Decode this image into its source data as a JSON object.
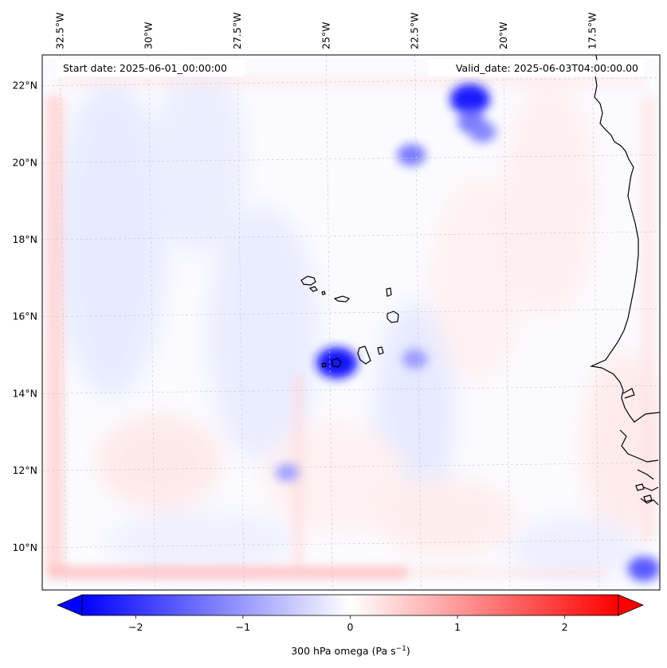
{
  "map": {
    "start_date": "Start date: 2025-06-01_00:00:00",
    "valid_date": "Valid_date: 2025-06-03T04:00:00.00",
    "lon_labels": [
      "32.5°W",
      "30°W",
      "27.5°W",
      "25°W",
      "22.5°W",
      "20°W",
      "17.5°W"
    ],
    "lat_labels": [
      "22°N",
      "20°N",
      "18°N",
      "16°N",
      "14°N",
      "12°N",
      "10°N"
    ],
    "extent": {
      "lon_min": -33.0,
      "lon_max": -15.6,
      "lat_min": 8.9,
      "lat_max": 22.8
    },
    "gridlines": true,
    "coastline_color": "#000000"
  },
  "colorbar": {
    "ticks": [
      "−2",
      "−1",
      "0",
      "1",
      "2"
    ],
    "tick_values": [
      -2,
      -1,
      0,
      1,
      2
    ],
    "range": [
      -2.5,
      2.5
    ],
    "label_main": "300 hPa omega (Pa s",
    "label_sup": "−1",
    "label_end": ")",
    "colormap": "bwr",
    "extend": "both",
    "color_low": "#0000ff",
    "color_mid": "#ffffff",
    "color_high": "#ff0000"
  },
  "field_features": [
    {
      "lon": -20.95,
      "lat": 21.65,
      "value": -2.2
    },
    {
      "lon": -20.9,
      "lat": 21.05,
      "value": -1.3
    },
    {
      "lon": -20.6,
      "lat": 20.8,
      "value": -1.2
    },
    {
      "lon": -22.6,
      "lat": 20.2,
      "value": -1.3
    },
    {
      "lon": -24.7,
      "lat": 14.8,
      "value": -2.3
    },
    {
      "lon": -22.5,
      "lat": 14.9,
      "value": -1.0
    },
    {
      "lon": -16.05,
      "lat": 9.45,
      "value": -1.6
    },
    {
      "lon": -26.1,
      "lat": 11.95,
      "value": -0.9
    }
  ]
}
